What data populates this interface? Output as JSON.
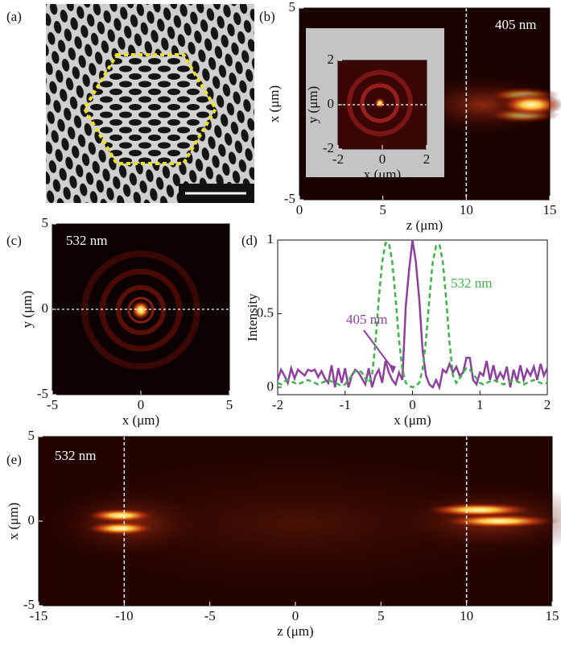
{
  "chart_data": [
    {
      "type": "image",
      "panel_label": "(a)"
    },
    {
      "type": "image",
      "panel_label": "(b)",
      "annotation": "405 nm",
      "xlabel": "z (μm)",
      "ylabel": "x (μm)",
      "xlim": [
        0,
        15
      ],
      "ylim": [
        -5,
        5
      ],
      "xticks": [
        0,
        5,
        10,
        15
      ],
      "yticks": [
        -5,
        5
      ],
      "vlines": [
        10
      ],
      "inset": {
        "xlabel": "x (μm)",
        "ylabel": "y (μm)",
        "xlim": [
          -2,
          2
        ],
        "ylim": [
          -2,
          2
        ],
        "xticks": [
          -2,
          0,
          2
        ],
        "yticks": [
          -2,
          0,
          2
        ],
        "hlines": [
          0
        ]
      }
    },
    {
      "type": "image",
      "panel_label": "(c)",
      "annotation": "532 nm",
      "xlabel": "x (μm)",
      "ylabel": "y (μm)",
      "xlim": [
        -5,
        5
      ],
      "ylim": [
        -5,
        5
      ],
      "xticks": [
        -5,
        0,
        5
      ],
      "yticks": [
        -5,
        0,
        5
      ],
      "hlines": [
        0
      ]
    },
    {
      "type": "line",
      "panel_label": "(d)",
      "xlabel": "x (μm)",
      "ylabel": "Intensity",
      "xlim": [
        -2,
        2
      ],
      "ylim": [
        -0.05,
        1
      ],
      "xticks": [
        -2,
        -1,
        0,
        1,
        2
      ],
      "yticks": [
        0,
        0.5,
        1
      ],
      "x": [
        -2,
        -1.95,
        -1.9,
        -1.85,
        -1.8,
        -1.75,
        -1.7,
        -1.65,
        -1.6,
        -1.55,
        -1.5,
        -1.45,
        -1.4,
        -1.35,
        -1.3,
        -1.25,
        -1.2,
        -1.15,
        -1.1,
        -1.05,
        -1,
        -0.95,
        -0.9,
        -0.85,
        -0.8,
        -0.75,
        -0.7,
        -0.65,
        -0.6,
        -0.55,
        -0.5,
        -0.45,
        -0.4,
        -0.35,
        -0.3,
        -0.25,
        -0.2,
        -0.15,
        -0.1,
        -0.05,
        0,
        0.05,
        0.1,
        0.15,
        0.2,
        0.25,
        0.3,
        0.35,
        0.4,
        0.45,
        0.5,
        0.55,
        0.6,
        0.65,
        0.7,
        0.75,
        0.8,
        0.85,
        0.9,
        0.95,
        1,
        1.05,
        1.1,
        1.15,
        1.2,
        1.25,
        1.3,
        1.35,
        1.4,
        1.45,
        1.5,
        1.55,
        1.6,
        1.65,
        1.7,
        1.75,
        1.8,
        1.85,
        1.9,
        1.95,
        2
      ],
      "series": [
        {
          "name": "405 nm",
          "color": "#8e3fa0",
          "dashed": false,
          "values": [
            0.05,
            0.12,
            0.08,
            0.03,
            0.13,
            0.06,
            0.12,
            0.1,
            0.08,
            0.12,
            0.11,
            0.12,
            0.07,
            0.11,
            0.06,
            0.03,
            0.15,
            0,
            0.13,
            0.03,
            0.13,
            0,
            0.08,
            0.12,
            0.1,
            0.06,
            0.02,
            0.13,
            0,
            0.08,
            0.12,
            0.03,
            0.18,
            0.1,
            0.05,
            0.02,
            0.1,
            0.05,
            0.55,
            0.8,
            1.0,
            0.85,
            0.6,
            0.25,
            0.08,
            0.02,
            0,
            0.05,
            0,
            0.12,
            0.1,
            0.16,
            0.1,
            0.14,
            0.08,
            0.1,
            0.2,
            0.2,
            0.05,
            0.02,
            0.1,
            0.08,
            0.18,
            0.05,
            0.15,
            0.05,
            0.1,
            0.06,
            0.14,
            0,
            0.12,
            0.04,
            0.15,
            0.05,
            0.12,
            0.08,
            0.14,
            0.05,
            0.16,
            0.08,
            0.13
          ]
        },
        {
          "name": "532 nm",
          "color": "#3bb54a",
          "dashed": true,
          "values": [
            0.03,
            0.02,
            0.04,
            0.05,
            0.04,
            0.03,
            0.02,
            0.03,
            0.04,
            0.05,
            0.04,
            0.03,
            0.02,
            0.03,
            0.04,
            0.05,
            0.04,
            0.03,
            0.02,
            0.01,
            0.02,
            0.05,
            0.08,
            0.11,
            0.12,
            0.1,
            0.06,
            0.03,
            0.08,
            0.3,
            0.6,
            0.85,
            0.98,
            0.98,
            0.85,
            0.6,
            0.32,
            0.12,
            0.03,
            0.01,
            0,
            0.01,
            0.03,
            0.12,
            0.32,
            0.6,
            0.85,
            0.96,
            0.97,
            0.85,
            0.6,
            0.3,
            0.08,
            0.03,
            0.06,
            0.1,
            0.13,
            0.12,
            0.09,
            0.06,
            0.03,
            0.02,
            0.03,
            0.04,
            0.05,
            0.04,
            0.03,
            0.02,
            0.03,
            0.04,
            0.05,
            0.04,
            0.03,
            0.02,
            0.03,
            0.04,
            0.05,
            0.04,
            0.03,
            0.02,
            0.03
          ]
        }
      ]
    },
    {
      "type": "image",
      "panel_label": "(e)",
      "annotation": "532 nm",
      "xlabel": "z (μm)",
      "ylabel": "x (μm)",
      "xlim": [
        -15,
        15
      ],
      "ylim": [
        -5,
        5
      ],
      "xticks": [
        -15,
        -10,
        -5,
        0,
        5,
        10,
        15
      ],
      "yticks": [
        -5,
        0,
        5
      ],
      "vlines": [
        -10,
        10
      ]
    }
  ]
}
